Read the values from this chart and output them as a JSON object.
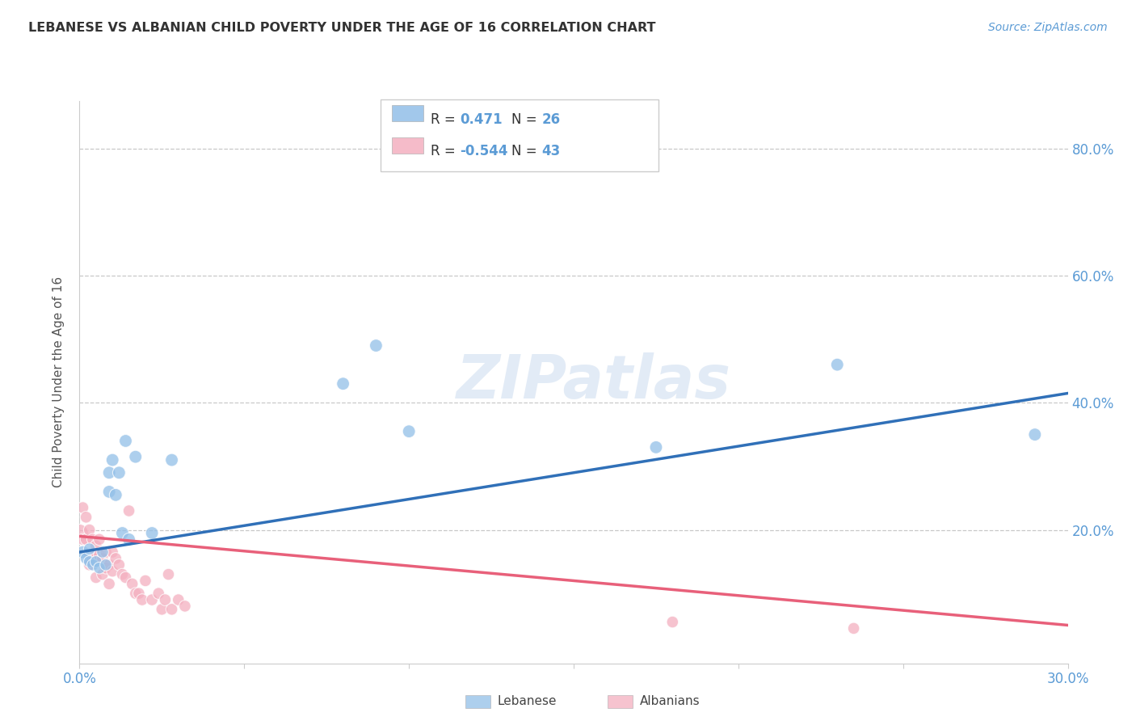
{
  "title": "LEBANESE VS ALBANIAN CHILD POVERTY UNDER THE AGE OF 16 CORRELATION CHART",
  "source": "Source: ZipAtlas.com",
  "ylabel": "Child Poverty Under the Age of 16",
  "xlim": [
    0.0,
    0.3
  ],
  "ylim": [
    -0.01,
    0.875
  ],
  "yticks": [
    0.0,
    0.2,
    0.4,
    0.6,
    0.8
  ],
  "xticks": [
    0.0,
    0.05,
    0.1,
    0.15,
    0.2,
    0.25,
    0.3
  ],
  "xtick_labels": [
    "0.0%",
    "",
    "",
    "",
    "",
    "",
    "30.0%"
  ],
  "ytick_labels_right": [
    "",
    "20.0%",
    "40.0%",
    "60.0%",
    "80.0%"
  ],
  "watermark": "ZIPatlas",
  "blue_color": "#92bfe8",
  "pink_color": "#f4afc0",
  "blue_line_color": "#3070b8",
  "pink_line_color": "#e8607a",
  "axis_color": "#5b9bd5",
  "grid_color": "#c8c8c8",
  "title_color": "#333333",
  "lebanese_x": [
    0.001,
    0.002,
    0.003,
    0.003,
    0.004,
    0.005,
    0.006,
    0.007,
    0.008,
    0.009,
    0.009,
    0.01,
    0.011,
    0.012,
    0.013,
    0.014,
    0.015,
    0.017,
    0.022,
    0.028,
    0.08,
    0.09,
    0.1,
    0.175,
    0.23,
    0.29
  ],
  "lebanese_y": [
    0.165,
    0.155,
    0.15,
    0.17,
    0.145,
    0.15,
    0.14,
    0.165,
    0.145,
    0.26,
    0.29,
    0.31,
    0.255,
    0.29,
    0.195,
    0.34,
    0.185,
    0.315,
    0.195,
    0.31,
    0.43,
    0.49,
    0.355,
    0.33,
    0.46,
    0.35
  ],
  "lebanese_sizes": [
    130,
    110,
    110,
    110,
    110,
    110,
    110,
    110,
    110,
    130,
    130,
    130,
    130,
    130,
    130,
    130,
    130,
    130,
    130,
    130,
    130,
    130,
    130,
    130,
    130,
    130
  ],
  "albanian_x": [
    0.0,
    0.001,
    0.001,
    0.002,
    0.002,
    0.003,
    0.003,
    0.003,
    0.004,
    0.004,
    0.005,
    0.005,
    0.005,
    0.006,
    0.006,
    0.007,
    0.007,
    0.008,
    0.008,
    0.009,
    0.009,
    0.01,
    0.01,
    0.011,
    0.012,
    0.013,
    0.014,
    0.015,
    0.016,
    0.017,
    0.018,
    0.019,
    0.02,
    0.022,
    0.024,
    0.025,
    0.026,
    0.027,
    0.028,
    0.03,
    0.032,
    0.18,
    0.235
  ],
  "albanian_y": [
    0.195,
    0.235,
    0.185,
    0.22,
    0.185,
    0.2,
    0.16,
    0.145,
    0.185,
    0.155,
    0.175,
    0.16,
    0.125,
    0.185,
    0.16,
    0.155,
    0.13,
    0.165,
    0.14,
    0.145,
    0.115,
    0.165,
    0.135,
    0.155,
    0.145,
    0.13,
    0.125,
    0.23,
    0.115,
    0.1,
    0.1,
    0.09,
    0.12,
    0.09,
    0.1,
    0.075,
    0.09,
    0.13,
    0.075,
    0.09,
    0.08,
    0.055,
    0.045
  ],
  "albanian_sizes": [
    250,
    110,
    110,
    110,
    110,
    110,
    110,
    110,
    110,
    110,
    110,
    110,
    110,
    110,
    110,
    110,
    110,
    110,
    110,
    110,
    110,
    110,
    110,
    110,
    110,
    110,
    110,
    110,
    110,
    110,
    110,
    110,
    110,
    110,
    110,
    110,
    110,
    110,
    110,
    110,
    110,
    110,
    110
  ],
  "blue_trend_x": [
    0.0,
    0.3
  ],
  "blue_trend_y": [
    0.165,
    0.415
  ],
  "pink_trend_x": [
    0.0,
    0.3
  ],
  "pink_trend_y": [
    0.19,
    0.05
  ]
}
